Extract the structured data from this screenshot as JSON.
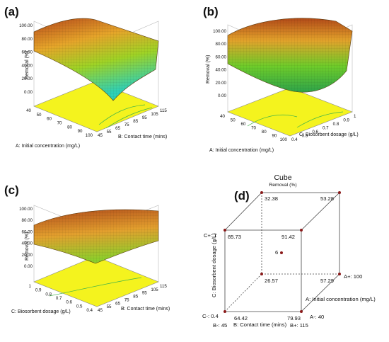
{
  "chart_data": [
    {
      "panel": "(a)",
      "type": "surface3d",
      "z_label": "Removal (%)",
      "z_ticks": [
        "0.00",
        "20.00",
        "40.00",
        "60.00",
        "80.00",
        "100.00"
      ],
      "x_label": "A: Initial concentration  (mg/L)",
      "x_ticks": [
        "40",
        "50",
        "60",
        "70",
        "80",
        "90",
        "100"
      ],
      "y_label": "B: Contact time (mins)",
      "y_ticks": [
        "45",
        "55",
        "65",
        "75",
        "85",
        "95",
        "105",
        "115"
      ]
    },
    {
      "panel": "(b)",
      "type": "surface3d",
      "z_label": "Removal (%)",
      "z_ticks": [
        "0.00",
        "20.00",
        "40.00",
        "60.00",
        "80.00",
        "100.00"
      ],
      "x_label": "A: Initial concentration  (mg/L)",
      "x_ticks": [
        "40",
        "50",
        "60",
        "70",
        "80",
        "90",
        "100"
      ],
      "y_label": "C: Biosorbent dosage (g/L)",
      "y_ticks": [
        "0.4",
        "0.5",
        "0.6",
        "0.7",
        "0.8",
        "0.9",
        "1"
      ]
    },
    {
      "panel": "(c)",
      "type": "surface3d",
      "z_label": "Removal (%)",
      "z_ticks": [
        "0.00",
        "20.00",
        "40.00",
        "60.00",
        "80.00",
        "100.00"
      ],
      "x_label": "C: Biosorbent dosage (g/L)",
      "x_ticks": [
        "1",
        "0.9",
        "0.8",
        "0.7",
        "0.6",
        "0.5",
        "0.4"
      ],
      "y_label": "B: Contact time (mins)",
      "y_ticks": [
        "45",
        "55",
        "65",
        "75",
        "85",
        "95",
        "105",
        "115"
      ]
    },
    {
      "panel": "(d)",
      "type": "cube",
      "title": "Cube",
      "subtitle": "Removal (%)",
      "x_label": "B: Contact time (mins)",
      "y_label": "C: Biosorbent dosage (g/L)",
      "z_label": "A: Initial concentration  (mg/L)",
      "corner_labels": {
        "B_low": "B-: 45",
        "B_high": "B+: 115",
        "C_low": "C-: 0.4",
        "C_high": "C+: 1",
        "A_low": "A-: 40",
        "A_high": "A+: 100"
      },
      "center_label": "6",
      "values": {
        "front_bottom_left": 64.42,
        "front_bottom_right": 79.93,
        "front_top_left": 85.73,
        "front_top_right": 91.42,
        "back_bottom_left": 26.57,
        "back_bottom_right": 57.29,
        "back_top_left": 32.38,
        "back_top_right": 53.28
      }
    }
  ]
}
